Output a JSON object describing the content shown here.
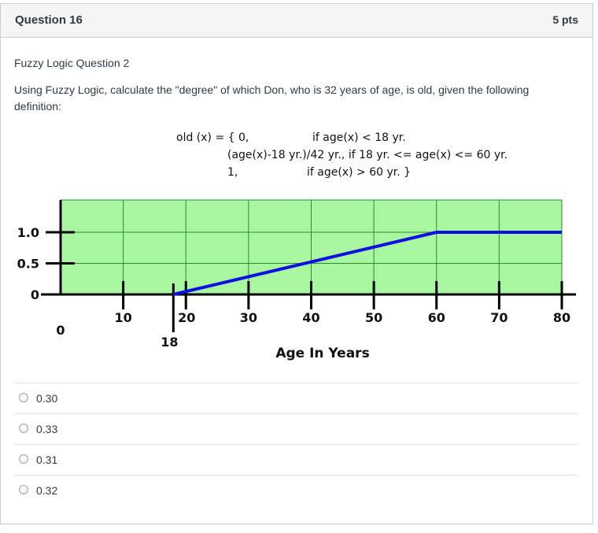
{
  "question": {
    "title": "Question 16",
    "points": "5 pts",
    "subtitle": "Fuzzy Logic Question 2",
    "prompt": "Using Fuzzy Logic, calculate the \"degree\" of which Don, who is 32 years of age, is old, given the following definition:"
  },
  "definition": {
    "line1_left": "old (x) = { 0,",
    "line1_right": "if age(x) < 18 yr.",
    "line2": "(age(x)-18 yr.)/42 yr., if 18 yr. <= age(x) <= 60 yr.",
    "line3_left": "1,",
    "line3_right": "if age(x) > 60 yr. }"
  },
  "chart_data": {
    "type": "line",
    "xlabel": "Age In Years",
    "x_ticks": [
      "0",
      "10",
      "18",
      "20",
      "30",
      "40",
      "50",
      "60",
      "70",
      "80"
    ],
    "y_ticks": [
      "0",
      "0.5",
      "1.0"
    ],
    "xlim": [
      0,
      80
    ],
    "ylim": [
      0,
      1.0
    ],
    "grid": true,
    "series": [
      {
        "x": [
          18,
          60,
          80
        ],
        "y": [
          0,
          1.0,
          1.0
        ],
        "color": "#1010e0"
      }
    ],
    "colors": {
      "plot_bg": "#a8f7a0",
      "grid": "#2e8b2e",
      "axis": "#000000"
    }
  },
  "answers": [
    {
      "label": "0.30"
    },
    {
      "label": "0.33"
    },
    {
      "label": "0.31"
    },
    {
      "label": "0.32"
    }
  ]
}
